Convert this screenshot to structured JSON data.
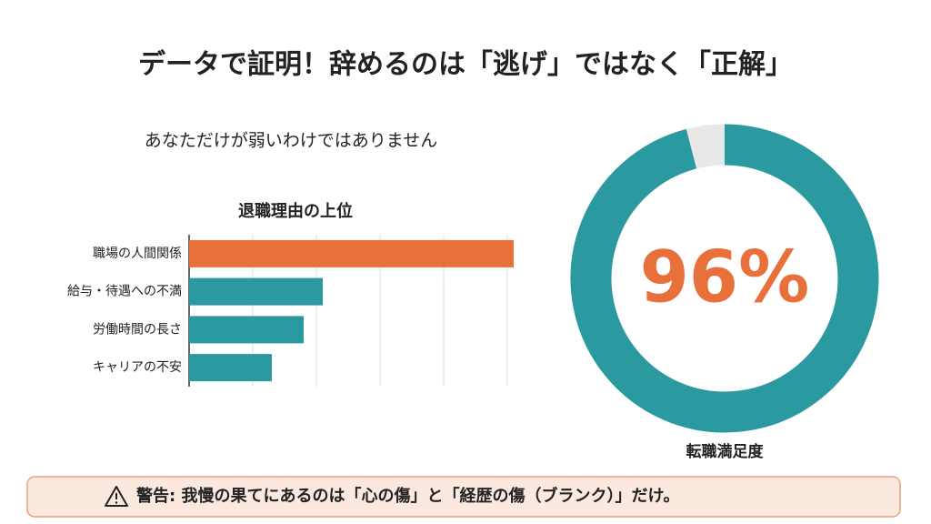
{
  "title": "データで証明！辞めるのは「逃げ」ではなく「正解」",
  "warning": "警告: 我慢の果てにあるのは「心の傷」と「経歴の傷（ブランク）」だけ。",
  "chart_data": [
    {
      "type": "bar",
      "orientation": "horizontal",
      "subtitle": "あなただけが弱いわけではありません",
      "title": "退職理由の上位",
      "categories": [
        "職場の人間関係",
        "給与・待遇への不満",
        "労働時間の長さ",
        "キャリアの不安"
      ],
      "values": [
        51,
        21,
        18,
        13
      ],
      "colors": [
        "#e8703a",
        "#2a9aa0",
        "#2a9aa0",
        "#2a9aa0"
      ],
      "xlim": [
        0,
        52
      ],
      "xticks": [
        0,
        10,
        20,
        30,
        40,
        50
      ],
      "grid": true
    },
    {
      "type": "donut",
      "value": 96,
      "value_label": "96%",
      "color": "#2a9aa0",
      "track_color": "#e8e8e8",
      "label_color": "#e8703a",
      "caption": "転職満足度",
      "max": 100
    }
  ]
}
